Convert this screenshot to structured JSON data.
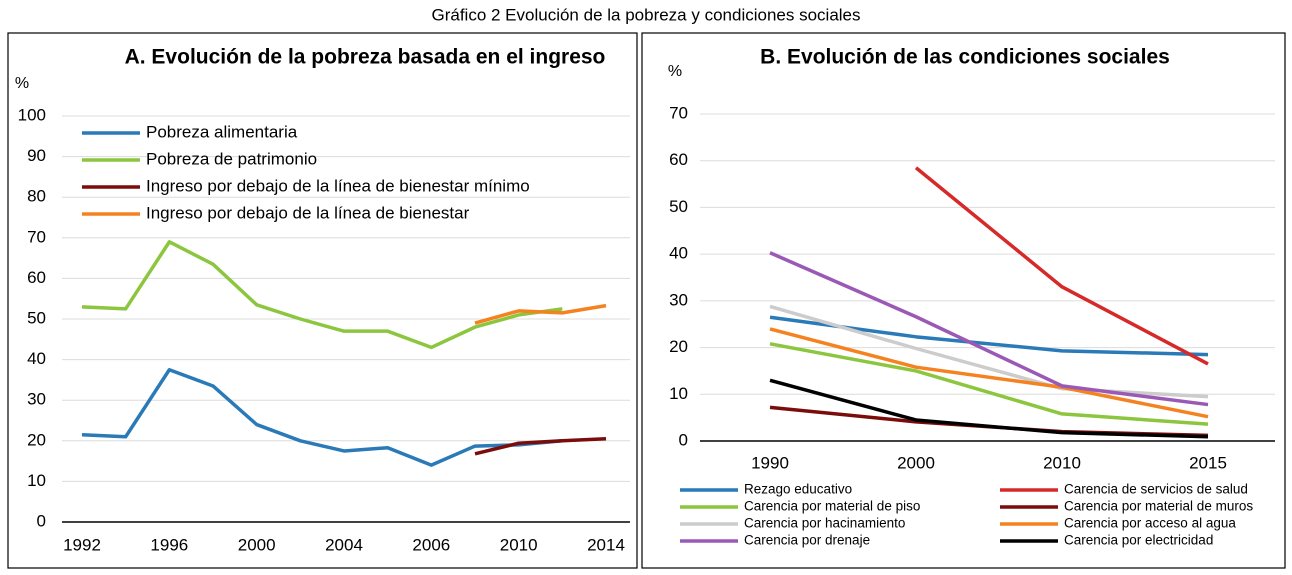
{
  "title": "Gráfico 2 Evolución de la pobreza y condiciones sociales",
  "chart_data": [
    {
      "type": "line",
      "title": "A. Evolución de la pobreza basada en el ingreso",
      "y_label": "%",
      "categories": [
        "1992",
        null,
        "1996",
        null,
        "2000",
        null,
        "2004",
        null,
        "2006",
        null,
        "2010",
        null,
        "2014"
      ],
      "series": [
        {
          "name": "Pobreza alimentaria",
          "color": "#2a7ab8",
          "values": [
            21.5,
            21,
            37.5,
            33.5,
            24,
            20,
            17.5,
            18.3,
            14,
            18.7,
            19,
            20,
            null
          ]
        },
        {
          "name": "Pobreza de patrimonio",
          "color": "#8cc63f",
          "values": [
            53,
            52.5,
            69,
            63.5,
            53.5,
            50,
            47,
            47,
            43,
            48,
            51,
            52.5,
            null
          ]
        },
        {
          "name": "Ingreso por debajo de la línea de bienestar mínimo",
          "color": "#7b0c0c",
          "values": [
            null,
            null,
            null,
            null,
            null,
            null,
            null,
            null,
            null,
            16.8,
            19.4,
            20,
            20.5
          ]
        },
        {
          "name": "Ingreso por debajo de la línea de bienestar",
          "color": "#f58220",
          "values": [
            null,
            null,
            null,
            null,
            null,
            null,
            null,
            null,
            null,
            49,
            52,
            51.5,
            53.3
          ]
        }
      ],
      "ylim": [
        0,
        100
      ],
      "yticks": [
        0,
        10,
        20,
        30,
        40,
        50,
        60,
        70,
        80,
        90,
        100
      ],
      "grid": true,
      "legend": "upper left"
    },
    {
      "type": "line",
      "title": "B. Evolución de las condiciones sociales",
      "y_label": "%",
      "categories": [
        "1990",
        "2000",
        "2010",
        "2015"
      ],
      "series": [
        {
          "name": "Rezago educativo",
          "color": "#2a7ab8",
          "values": [
            26.5,
            22.3,
            19.3,
            18.5
          ]
        },
        {
          "name": "Carencia de servicios de salud",
          "color": "#d62a2a",
          "values": [
            null,
            58.5,
            33,
            16.5
          ]
        },
        {
          "name": "Carencia por material de piso",
          "color": "#8cc63f",
          "values": [
            20.8,
            15,
            5.8,
            3.6
          ]
        },
        {
          "name": "Carencia por material de muros",
          "color": "#7b0c0c",
          "values": [
            7.2,
            4.1,
            2,
            1.2
          ]
        },
        {
          "name": "Carencia por hacinamiento",
          "color": "#cccccc",
          "values": [
            28.8,
            19.8,
            11.2,
            9.5
          ]
        },
        {
          "name": "Carencia por acceso al agua",
          "color": "#f58220",
          "values": [
            24,
            15.8,
            11.5,
            5.2
          ]
        },
        {
          "name": "Carencia por drenaje",
          "color": "#9b59b6",
          "values": [
            40.3,
            26.6,
            11.8,
            7.8
          ]
        },
        {
          "name": "Carencia por electricidad",
          "color": "#000000",
          "values": [
            13,
            4.5,
            1.8,
            0.9
          ]
        }
      ],
      "ylim": [
        0,
        70
      ],
      "yticks": [
        0,
        10,
        20,
        30,
        40,
        50,
        60,
        70
      ],
      "grid": true,
      "legend": "bottom"
    }
  ]
}
